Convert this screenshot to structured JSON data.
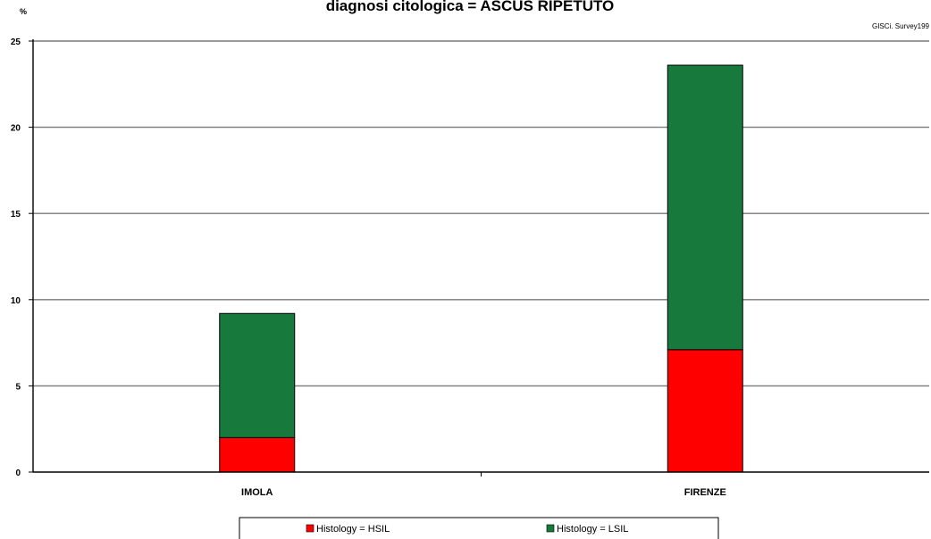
{
  "chart_data": {
    "type": "bar",
    "stacked": true,
    "title": "diagnosi citologica =  ASCUS RIPETUTO",
    "source_note": "GISCi.   Survey199",
    "ylabel": "%",
    "xlabel": "",
    "ylim": [
      0,
      25
    ],
    "yticks": [
      0,
      5,
      10,
      15,
      20,
      25
    ],
    "grid": true,
    "legend_position": "bottom",
    "categories": [
      "IMOLA",
      "FIRENZE"
    ],
    "series": [
      {
        "name": "Histology = HSIL",
        "color": "#ff0000",
        "values": [
          2.0,
          7.1
        ]
      },
      {
        "name": "Histology = LSIL",
        "color": "#177a3c",
        "values": [
          7.2,
          16.5
        ]
      }
    ]
  }
}
